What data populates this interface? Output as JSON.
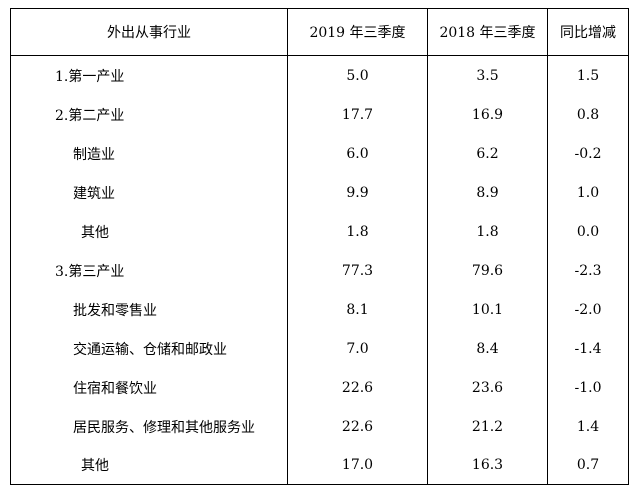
{
  "table": {
    "headers": [
      "外出从事行业",
      "2019 年三季度",
      "2018 年三季度",
      "同比增减"
    ],
    "rows": [
      {
        "name": "1.第一产业",
        "level": 0,
        "y2019": "5.0",
        "y2018": "3.5",
        "change": "1.5"
      },
      {
        "name": "2.第二产业",
        "level": 0,
        "y2019": "17.7",
        "y2018": "16.9",
        "change": "0.8"
      },
      {
        "name": "制造业",
        "level": 1,
        "y2019": "6.0",
        "y2018": "6.2",
        "change": "-0.2"
      },
      {
        "name": "建筑业",
        "level": 1,
        "y2019": "9.9",
        "y2018": "8.9",
        "change": "1.0"
      },
      {
        "name": "其他",
        "level": 2,
        "y2019": "1.8",
        "y2018": "1.8",
        "change": "0.0"
      },
      {
        "name": "3.第三产业",
        "level": 0,
        "y2019": "77.3",
        "y2018": "79.6",
        "change": "-2.3"
      },
      {
        "name": "批发和零售业",
        "level": 1,
        "y2019": "8.1",
        "y2018": "10.1",
        "change": "-2.0"
      },
      {
        "name": "交通运输、仓储和邮政业",
        "level": 1,
        "y2019": "7.0",
        "y2018": "8.4",
        "change": "-1.4"
      },
      {
        "name": "住宿和餐饮业",
        "level": 1,
        "y2019": "22.6",
        "y2018": "23.6",
        "change": "-1.0"
      },
      {
        "name": "居民服务、修理和其他服务业",
        "level": 1,
        "y2019": "22.6",
        "y2018": "21.2",
        "change": "1.4"
      },
      {
        "name": "其他",
        "level": 2,
        "y2019": "17.0",
        "y2018": "16.3",
        "change": "0.7"
      }
    ]
  }
}
